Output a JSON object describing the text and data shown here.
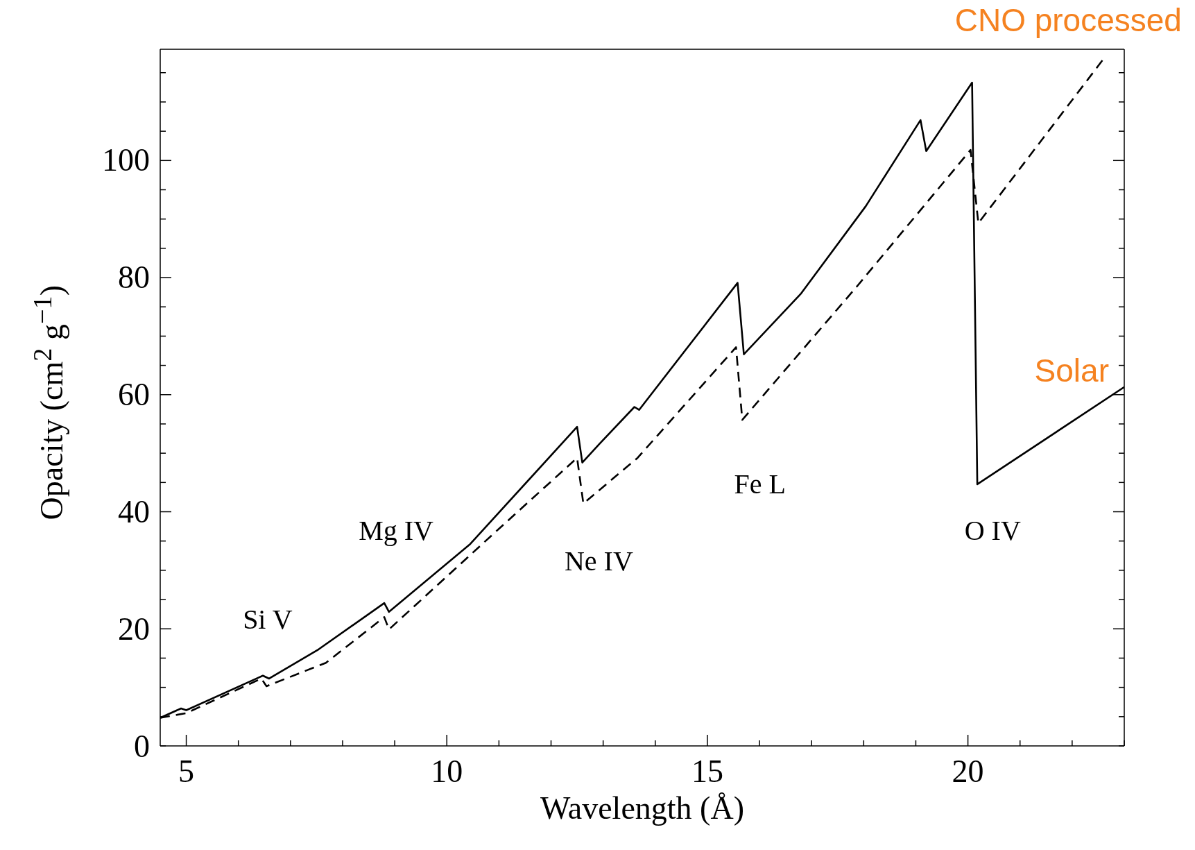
{
  "chart_data": {
    "type": "line",
    "xlabel": "Wavelength (Å)",
    "ylabel": "Opacity (cm$^{2}$ g$^{−1}$)",
    "xlim": [
      4.5,
      23
    ],
    "ylim": [
      0,
      119
    ],
    "xticks": [
      5,
      {
        "value": 6,
        "label": null
      },
      {
        "value": 7,
        "label": null
      },
      {
        "value": 8,
        "label": null
      },
      {
        "value": 9,
        "label": null
      },
      10,
      {
        "value": 11,
        "label": null
      },
      {
        "value": 12,
        "label": null
      },
      {
        "value": 13,
        "label": null
      },
      {
        "value": 14,
        "label": null
      },
      15,
      {
        "value": 16,
        "label": null
      },
      {
        "value": 17,
        "label": null
      },
      {
        "value": 18,
        "label": null
      },
      {
        "value": 19,
        "label": null
      },
      20,
      {
        "value": 21,
        "label": null
      },
      {
        "value": 22,
        "label": null
      },
      {
        "value": 23,
        "label": null
      }
    ],
    "yticks": [
      0,
      {
        "value": 5,
        "label": null
      },
      {
        "value": 10,
        "label": null
      },
      {
        "value": 15,
        "label": null
      },
      20,
      {
        "value": 25,
        "label": null
      },
      {
        "value": 30,
        "label": null
      },
      {
        "value": 35,
        "label": null
      },
      40,
      {
        "value": 45,
        "label": null
      },
      {
        "value": 50,
        "label": null
      },
      {
        "value": 55,
        "label": null
      },
      60,
      {
        "value": 65,
        "label": null
      },
      {
        "value": 70,
        "label": null
      },
      {
        "value": 75,
        "label": null
      },
      80,
      {
        "value": 85,
        "label": null
      },
      {
        "value": 90,
        "label": null
      },
      {
        "value": 95,
        "label": null
      },
      100,
      {
        "value": 105,
        "label": null
      },
      {
        "value": 110,
        "label": null
      },
      {
        "value": 115,
        "label": null
      }
    ],
    "series": [
      {
        "name": "Solar",
        "color": "#000000",
        "line_style": "solid",
        "x": [
          4.5,
          4.9,
          5.0,
          6.37,
          6.47,
          6.59,
          7.54,
          8.8,
          8.89,
          10.45,
          12.5,
          12.6,
          12.93,
          13.6,
          13.69,
          15.58,
          15.7,
          16.8,
          18.04,
          19.09,
          19.2,
          20.08,
          20.18,
          23.0
        ],
        "values": [
          4.8,
          6.4,
          6.1,
          11.6,
          12.0,
          11.5,
          16.5,
          24.4,
          22.9,
          34.5,
          54.5,
          48.4,
          51.6,
          57.9,
          57.4,
          79.1,
          66.9,
          77.3,
          92.2,
          106.9,
          101.6,
          113.3,
          44.7,
          61.3
        ]
      },
      {
        "name": "CNO processed",
        "color": "#000000",
        "line_style": "dashed",
        "x": [
          4.5,
          5.0,
          6.44,
          6.54,
          7.68,
          8.8,
          8.89,
          10.89,
          12.5,
          12.62,
          13.66,
          15.55,
          15.67,
          17.89,
          20.05,
          20.2,
          22.64
        ],
        "values": [
          4.8,
          5.6,
          11.5,
          10.2,
          14.2,
          22.0,
          19.9,
          36.2,
          49.2,
          41.4,
          49.2,
          68.1,
          55.7,
          78.7,
          101.8,
          89.3,
          117.8
        ]
      }
    ],
    "annotations": [
      "Si V",
      "Mg IV",
      "Ne IV",
      "Fe L",
      "O IV"
    ]
  }
}
